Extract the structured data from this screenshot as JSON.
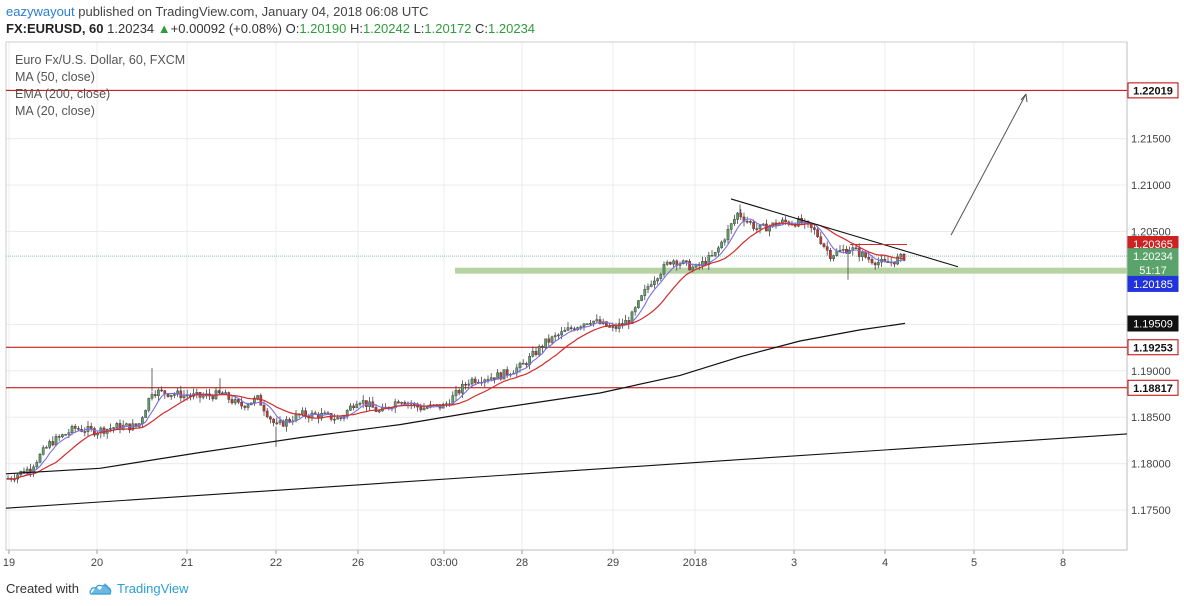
{
  "header": {
    "author": "eazywayout",
    "published_text": "published on TradingView.com, January 04, 2018 06:08 UTC",
    "symbol": "FX:EURUSD, 60",
    "last": "1.20234",
    "change": "+0.00092 (+0.08%)",
    "open_label": "O:",
    "open": "1.20190",
    "high_label": "H:",
    "high": "1.20242",
    "low_label": "L:",
    "low": "1.20172",
    "close_label": "C:",
    "close": "1.20234",
    "up_icon": "triangle-up-icon"
  },
  "legend": {
    "title": "Euro Fx/U.S. Dollar, 60, FXCM",
    "ma50": "MA (50, close)",
    "ema200": "EMA (200, close)",
    "ma20": "MA (20, close)"
  },
  "footer": {
    "created_with": "Created with",
    "brand": "TradingView",
    "logo_icon": "tradingview-cloud-icon"
  },
  "chart_data": {
    "type": "candlestick",
    "instrument": "EURUSD",
    "timeframe": "60",
    "ylim": [
      1.1707,
      1.2254
    ],
    "y_ticks": [
      "1.21500",
      "1.21000",
      "1.20500",
      "1.19500",
      "1.19000",
      "1.18500",
      "1.18000",
      "1.17500"
    ],
    "x_ticks": [
      "19",
      "20",
      "21",
      "22",
      "26",
      "03:00",
      "28",
      "29",
      "2018",
      "3",
      "4",
      "5",
      "8"
    ],
    "price_tags": [
      {
        "label": "1.22019",
        "value": 1.22019,
        "fill": "#ffffff",
        "stroke": "#c00000",
        "text_color": "#111111"
      },
      {
        "label": "1.20365",
        "value": 1.20365,
        "fill": "#cc2222",
        "stroke": "#cc2222",
        "text_color": "#ffffff"
      },
      {
        "label": "1.20234",
        "value": 1.20234,
        "fill": "#5aa36a",
        "stroke": "#5aa36a",
        "text_color": "#ffffff"
      },
      {
        "label": "51:17",
        "value": 1.20085,
        "fill": "#5aa36a",
        "stroke": "#5aa36a",
        "text_color": "#ffffff"
      },
      {
        "label": "1.20185",
        "value": 1.19935,
        "fill": "#2233dd",
        "stroke": "#2233dd",
        "text_color": "#ffffff"
      },
      {
        "label": "1.19509",
        "value": 1.19509,
        "fill": "#111111",
        "stroke": "#111111",
        "text_color": "#ffffff"
      },
      {
        "label": "1.19253",
        "value": 1.19253,
        "fill": "#ffffff",
        "stroke": "#c00000",
        "text_color": "#111111"
      },
      {
        "label": "1.18817",
        "value": 1.18817,
        "fill": "#ffffff",
        "stroke": "#c00000",
        "text_color": "#111111"
      }
    ],
    "horizontal_levels": [
      1.22019,
      1.19253,
      1.18817
    ],
    "support_zone": [
      1.2005,
      1.2011
    ],
    "ma20_last": 1.20234,
    "ma50_last": 1.20365,
    "ema200_last": 1.19509,
    "colors": {
      "up": "#5aa36a",
      "down": "#cc3333",
      "ma20": "#7b6fe0",
      "ma50": "#d42a2a",
      "ema200": "#111111",
      "zone": "#b7d3a3",
      "level": "#c00000",
      "grid": "#e9ecef"
    }
  }
}
